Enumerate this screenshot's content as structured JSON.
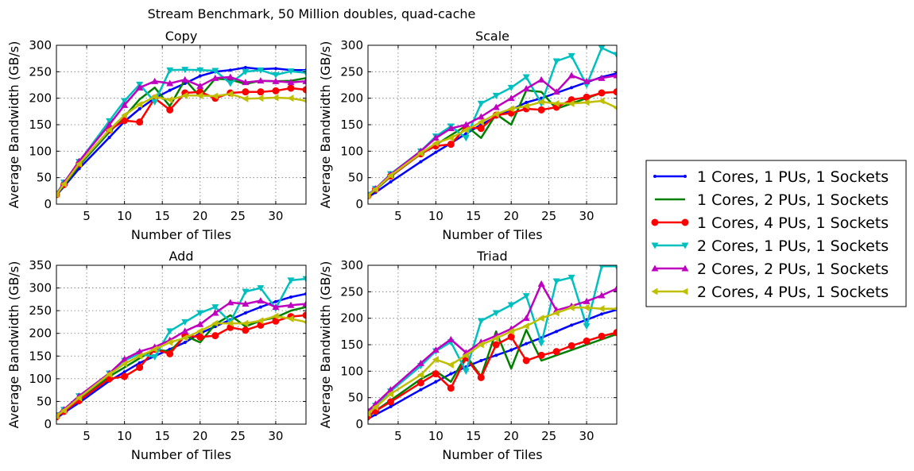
{
  "figure": {
    "suptitle": "Stream Benchmark, 50 Million doubles, quad-cache"
  },
  "legend": {
    "placement": "right",
    "entries": [
      {
        "name": "1 Cores, 1 PUs, 1 Sockets",
        "color": "#0000ff",
        "marker": "dot"
      },
      {
        "name": "1 Cores, 2 PUs, 1 Sockets",
        "color": "#008000",
        "marker": "none"
      },
      {
        "name": "1 Cores, 4 PUs, 1 Sockets",
        "color": "#ff0000",
        "marker": "circle"
      },
      {
        "name": "2 Cores, 1 PUs, 1 Sockets",
        "color": "#00bfbf",
        "marker": "triangle-down"
      },
      {
        "name": "2 Cores, 2 PUs, 1 Sockets",
        "color": "#bf00bf",
        "marker": "triangle-up"
      },
      {
        "name": "2 Cores, 4 PUs, 1 Sockets",
        "color": "#bfbf00",
        "marker": "triangle-left"
      }
    ]
  },
  "chart_data": [
    {
      "type": "line",
      "title": "Copy",
      "xlabel": "Number of Tiles",
      "ylabel": "Average Bandwidth (GB/s)",
      "xlim": [
        1,
        34
      ],
      "ylim": [
        0,
        300
      ],
      "xticks": [
        5,
        10,
        15,
        20,
        25,
        30
      ],
      "yticks": [
        0,
        50,
        100,
        150,
        200,
        250,
        300
      ],
      "grid": true,
      "x": [
        1,
        2,
        4,
        8,
        10,
        12,
        14,
        16,
        18,
        20,
        22,
        24,
        26,
        28,
        30,
        32,
        34
      ],
      "series": [
        {
          "name": "1 Cores, 1 PUs, 1 Sockets",
          "values": [
            17,
            33,
            67,
            126,
            156,
            180,
            200,
            215,
            228,
            242,
            250,
            253,
            258,
            255,
            256,
            253,
            253
          ]
        },
        {
          "name": "1 Cores, 2 PUs, 1 Sockets",
          "values": [
            18,
            35,
            73,
            136,
            165,
            198,
            220,
            185,
            235,
            203,
            237,
            235,
            227,
            233,
            232,
            233,
            238
          ]
        },
        {
          "name": "1 Cores, 4 PUs, 1 Sockets",
          "values": [
            18,
            37,
            76,
            140,
            158,
            155,
            200,
            178,
            210,
            212,
            200,
            210,
            212,
            212,
            214,
            219,
            216
          ]
        },
        {
          "name": "2 Cores, 1 PUs, 1 Sockets",
          "values": [
            20,
            41,
            80,
            157,
            195,
            226,
            193,
            253,
            254,
            253,
            252,
            228,
            250,
            253,
            244,
            251,
            248
          ]
        },
        {
          "name": "2 Cores, 2 PUs, 1 Sockets",
          "values": [
            19,
            40,
            81,
            150,
            187,
            220,
            232,
            228,
            235,
            223,
            238,
            240,
            230,
            233,
            232,
            230,
            232
          ]
        },
        {
          "name": "2 Cores, 4 PUs, 1 Sockets",
          "values": [
            18,
            38,
            76,
            140,
            168,
            188,
            203,
            197,
            205,
            205,
            204,
            208,
            199,
            200,
            201,
            200,
            195
          ]
        }
      ]
    },
    {
      "type": "line",
      "title": "Scale",
      "xlabel": "Number of Tiles",
      "ylabel": "Average Bandwidth (GB/s)",
      "xlim": [
        1,
        34
      ],
      "ylim": [
        0,
        300
      ],
      "xticks": [
        5,
        10,
        15,
        20,
        25,
        30
      ],
      "yticks": [
        0,
        50,
        100,
        150,
        200,
        250,
        300
      ],
      "grid": true,
      "x": [
        1,
        2,
        4,
        8,
        10,
        12,
        14,
        16,
        18,
        20,
        22,
        24,
        26,
        28,
        30,
        32,
        34
      ],
      "series": [
        {
          "name": "1 Cores, 1 PUs, 1 Sockets",
          "values": [
            13,
            22,
            42,
            80,
            98,
            115,
            133,
            150,
            165,
            178,
            192,
            200,
            210,
            220,
            230,
            240,
            247
          ]
        },
        {
          "name": "1 Cores, 2 PUs, 1 Sockets",
          "values": [
            15,
            27,
            52,
            95,
            112,
            130,
            148,
            125,
            170,
            150,
            215,
            212,
            180,
            190,
            200,
            210,
            212
          ]
        },
        {
          "name": "1 Cores, 4 PUs, 1 Sockets",
          "values": [
            16,
            28,
            53,
            95,
            110,
            113,
            145,
            143,
            168,
            172,
            180,
            178,
            183,
            197,
            202,
            210,
            212
          ]
        },
        {
          "name": "2 Cores, 1 PUs, 1 Sockets",
          "values": [
            18,
            29,
            57,
            100,
            128,
            147,
            125,
            190,
            205,
            220,
            240,
            190,
            270,
            280,
            225,
            295,
            282
          ]
        },
        {
          "name": "2 Cores, 2 PUs, 1 Sockets",
          "values": [
            17,
            29,
            56,
            100,
            125,
            143,
            150,
            165,
            183,
            200,
            218,
            235,
            212,
            243,
            232,
            238,
            243
          ]
        },
        {
          "name": "2 Cores, 4 PUs, 1 Sockets",
          "values": [
            16,
            28,
            54,
            96,
            115,
            125,
            140,
            155,
            170,
            180,
            185,
            193,
            190,
            190,
            192,
            195,
            182
          ]
        }
      ]
    },
    {
      "type": "line",
      "title": "Add",
      "xlabel": "Number of Tiles",
      "ylabel": "Average Bandwidth (GB/s)",
      "xlim": [
        1,
        34
      ],
      "ylim": [
        0,
        350
      ],
      "xticks": [
        5,
        10,
        15,
        20,
        25,
        30
      ],
      "yticks": [
        0,
        50,
        100,
        150,
        200,
        250,
        300,
        350
      ],
      "grid": true,
      "x": [
        1,
        2,
        4,
        8,
        10,
        12,
        14,
        16,
        18,
        20,
        22,
        24,
        26,
        28,
        30,
        32,
        34
      ],
      "series": [
        {
          "name": "1 Cores, 1 PUs, 1 Sockets",
          "values": [
            13,
            25,
            47,
            95,
            115,
            135,
            150,
            165,
            180,
            200,
            215,
            230,
            245,
            258,
            270,
            280,
            287
          ]
        },
        {
          "name": "1 Cores, 2 PUs, 1 Sockets",
          "values": [
            15,
            28,
            55,
            105,
            125,
            145,
            165,
            160,
            195,
            180,
            220,
            240,
            215,
            228,
            235,
            250,
            258
          ]
        },
        {
          "name": "1 Cores, 4 PUs, 1 Sockets",
          "values": [
            16,
            28,
            52,
            100,
            105,
            125,
            165,
            155,
            195,
            192,
            195,
            213,
            207,
            218,
            227,
            237,
            240
          ]
        },
        {
          "name": "2 Cores, 1 PUs, 1 Sockets",
          "values": [
            20,
            32,
            62,
            112,
            140,
            155,
            148,
            205,
            225,
            245,
            258,
            225,
            292,
            300,
            255,
            317,
            320
          ]
        },
        {
          "name": "2 Cores, 2 PUs, 1 Sockets",
          "values": [
            20,
            32,
            62,
            112,
            143,
            160,
            170,
            185,
            205,
            220,
            245,
            268,
            265,
            272,
            258,
            262,
            265
          ]
        },
        {
          "name": "2 Cores, 4 PUs, 1 Sockets",
          "values": [
            18,
            30,
            58,
            110,
            133,
            150,
            165,
            180,
            190,
            205,
            222,
            222,
            222,
            228,
            238,
            232,
            225
          ]
        }
      ]
    },
    {
      "type": "line",
      "title": "Triad",
      "xlabel": "Number of Tiles",
      "ylabel": "Average Bandwidth (GB/s)",
      "xlim": [
        1,
        34
      ],
      "ylim": [
        0,
        300
      ],
      "xticks": [
        5,
        10,
        15,
        20,
        25,
        30
      ],
      "yticks": [
        0,
        50,
        100,
        150,
        200,
        250,
        300
      ],
      "grid": true,
      "x": [
        1,
        2,
        4,
        8,
        10,
        12,
        14,
        16,
        18,
        20,
        22,
        24,
        26,
        28,
        30,
        32,
        34
      ],
      "series": [
        {
          "name": "1 Cores, 1 PUs, 1 Sockets",
          "values": [
            10,
            18,
            33,
            65,
            80,
            95,
            108,
            120,
            130,
            140,
            152,
            163,
            175,
            187,
            197,
            208,
            216
          ]
        },
        {
          "name": "1 Cores, 2 PUs, 1 Sockets",
          "values": [
            13,
            25,
            45,
            85,
            100,
            80,
            130,
            90,
            175,
            105,
            178,
            120,
            130,
            140,
            150,
            160,
            170
          ]
        },
        {
          "name": "1 Cores, 4 PUs, 1 Sockets",
          "values": [
            15,
            25,
            42,
            78,
            95,
            68,
            125,
            88,
            150,
            165,
            120,
            130,
            137,
            148,
            157,
            166,
            173
          ]
        },
        {
          "name": "2 Cores, 1 PUs, 1 Sockets",
          "values": [
            22,
            35,
            62,
            110,
            138,
            155,
            100,
            195,
            210,
            225,
            242,
            153,
            270,
            277,
            185,
            298,
            298
          ]
        },
        {
          "name": "2 Cores, 2 PUs, 1 Sockets",
          "values": [
            25,
            38,
            65,
            115,
            140,
            160,
            135,
            155,
            167,
            180,
            200,
            265,
            215,
            223,
            232,
            243,
            256
          ]
        },
        {
          "name": "2 Cores, 4 PUs, 1 Sockets",
          "values": [
            20,
            32,
            57,
            93,
            122,
            112,
            130,
            150,
            162,
            175,
            185,
            200,
            210,
            220,
            220,
            218,
            218
          ]
        }
      ]
    }
  ]
}
